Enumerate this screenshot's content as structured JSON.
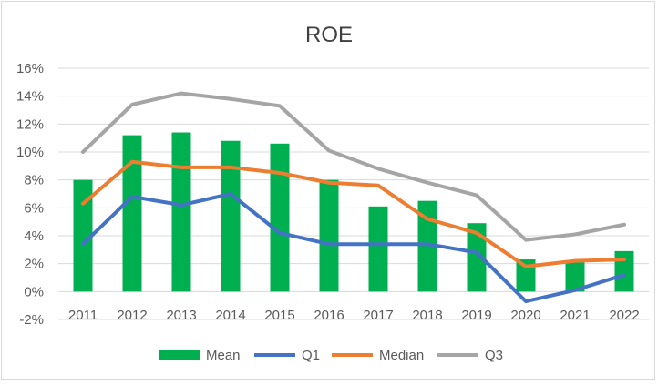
{
  "chart_data": {
    "type": "bar",
    "title": "ROE",
    "categories": [
      "2011",
      "2012",
      "2013",
      "2014",
      "2015",
      "2016",
      "2017",
      "2018",
      "2019",
      "2020",
      "2021",
      "2022"
    ],
    "ylim": [
      -2,
      16
    ],
    "yticks": [
      "-2%",
      "0%",
      "2%",
      "4%",
      "6%",
      "8%",
      "10%",
      "12%",
      "14%",
      "16%"
    ],
    "ytick_values": [
      -2,
      0,
      2,
      4,
      6,
      8,
      10,
      12,
      14,
      16
    ],
    "grid": true,
    "legend_position": "bottom",
    "series": [
      {
        "name": "Mean",
        "type": "bar",
        "color": "#00b050",
        "values": [
          8.0,
          11.2,
          11.4,
          10.8,
          10.6,
          8.0,
          6.1,
          6.5,
          4.9,
          2.3,
          2.1,
          2.9
        ]
      },
      {
        "name": "Q1",
        "type": "line",
        "color": "#4472c4",
        "values": [
          3.4,
          6.8,
          6.2,
          7.0,
          4.2,
          3.4,
          3.4,
          3.4,
          2.8,
          -0.7,
          0.1,
          1.2
        ]
      },
      {
        "name": "Median",
        "type": "line",
        "color": "#ed7d31",
        "values": [
          6.3,
          9.3,
          8.9,
          8.9,
          8.5,
          7.8,
          7.6,
          5.2,
          4.2,
          1.8,
          2.2,
          2.3
        ]
      },
      {
        "name": "Q3",
        "type": "line",
        "color": "#a5a5a5",
        "values": [
          10.0,
          13.4,
          14.2,
          13.8,
          13.3,
          10.1,
          8.8,
          7.8,
          6.9,
          3.7,
          4.1,
          4.8
        ]
      }
    ]
  }
}
